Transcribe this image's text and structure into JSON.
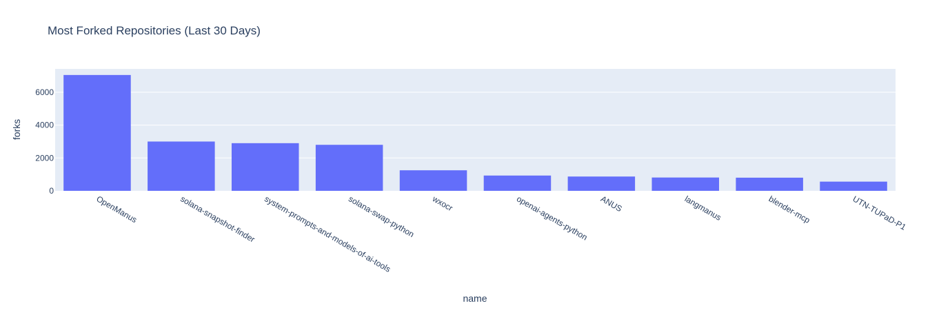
{
  "chart_data": {
    "type": "bar",
    "title": "Most Forked Repositories (Last 30 Days)",
    "xlabel": "name",
    "ylabel": "forks",
    "categories": [
      "OpenManus",
      "solana-snapshot-finder",
      "system-prompts-and-models-of-ai-tools",
      "solana-swap-python",
      "wxocr",
      "openai-agents-python",
      "ANUS",
      "langmanus",
      "blender-mcp",
      "UTN-TUPaD-P1"
    ],
    "values": [
      7050,
      3000,
      2900,
      2800,
      1250,
      930,
      870,
      810,
      800,
      560
    ],
    "ylim": [
      0,
      7421
    ],
    "yticks": [
      0,
      2000,
      4000,
      6000
    ],
    "ytick_labels": [
      "0",
      "2000",
      "4000",
      "6000"
    ],
    "grid": true,
    "colors": {
      "bar": "#636efa",
      "plot_bg": "#e5ecf6",
      "grid": "#ffffff",
      "text": "#2a3f5f"
    }
  }
}
